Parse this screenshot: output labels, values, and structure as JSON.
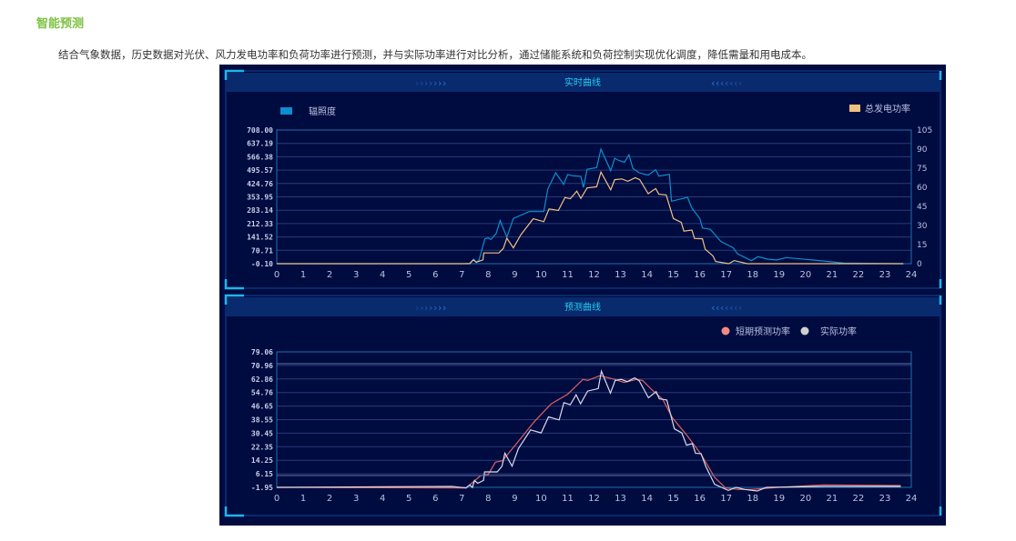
{
  "page": {
    "title": "智能预测",
    "description": "结合气象数据，历史数据对光伏、风力发电功率和负荷功率进行预测，并与实际功率进行对比分析，通过储能系统和负荷控制实现优化调度，降低需量和用电成本。"
  },
  "colors": {
    "accent_title": "#7cc242",
    "panel_bg": "#000b40",
    "header_bg": "#0a2a6e",
    "header_text": "#22d0f0"
  },
  "chart_data": [
    {
      "type": "line",
      "title": "实时曲线",
      "x_ticks": [
        "0",
        "1",
        "2",
        "3",
        "4",
        "5",
        "6",
        "7",
        "8",
        "9",
        "10",
        "11",
        "12",
        "13",
        "14",
        "15",
        "16",
        "17",
        "18",
        "19",
        "20",
        "21",
        "22",
        "23",
        "24"
      ],
      "xlim": [
        0,
        24
      ],
      "y_left_ticks": [
        "-0.10",
        "70.71",
        "141.52",
        "212.33",
        "283.14",
        "353.95",
        "424.76",
        "495.57",
        "566.38",
        "637.19",
        "708.00"
      ],
      "ylim_left": [
        -0.1,
        708.0
      ],
      "y_right_ticks": [
        "0",
        "15",
        "30",
        "45",
        "60",
        "75",
        "90",
        "105"
      ],
      "ylim_right": [
        0,
        105
      ],
      "grid": true,
      "legend": "top",
      "series": [
        {
          "name": "辐照度",
          "axis": "left",
          "color": "#0a8fd0",
          "points": [
            [
              0,
              0
            ],
            [
              7,
              0
            ],
            [
              7.3,
              2
            ],
            [
              7.45,
              24
            ],
            [
              7.55,
              5
            ],
            [
              7.65,
              20
            ],
            [
              7.87,
              132
            ],
            [
              8.0,
              136
            ],
            [
              8.1,
              128
            ],
            [
              8.3,
              160
            ],
            [
              8.45,
              228
            ],
            [
              8.7,
              140
            ],
            [
              8.95,
              240
            ],
            [
              9.55,
              276
            ],
            [
              10.1,
              276
            ],
            [
              10.25,
              395
            ],
            [
              10.55,
              481
            ],
            [
              10.85,
              420
            ],
            [
              11.0,
              472
            ],
            [
              11.2,
              465
            ],
            [
              11.5,
              463
            ],
            [
              11.6,
              404
            ],
            [
              11.74,
              500
            ],
            [
              12.1,
              509
            ],
            [
              12.26,
              607
            ],
            [
              12.63,
              492
            ],
            [
              12.78,
              558
            ],
            [
              12.95,
              546
            ],
            [
              13.15,
              537
            ],
            [
              13.32,
              577
            ],
            [
              13.47,
              504
            ],
            [
              13.7,
              482
            ],
            [
              14.05,
              469
            ],
            [
              14.33,
              498
            ],
            [
              14.45,
              464
            ],
            [
              14.85,
              473
            ],
            [
              14.93,
              331
            ],
            [
              15.54,
              351
            ],
            [
              15.7,
              294
            ],
            [
              16.0,
              239
            ],
            [
              16.1,
              189
            ],
            [
              16.4,
              182
            ],
            [
              16.8,
              117
            ],
            [
              17.26,
              84
            ],
            [
              17.43,
              52
            ],
            [
              17.95,
              16
            ],
            [
              18.2,
              37
            ],
            [
              18.57,
              24
            ],
            [
              18.9,
              19
            ],
            [
              19.27,
              32
            ],
            [
              20.3,
              19
            ],
            [
              21.45,
              3
            ],
            [
              23.7,
              0
            ]
          ]
        },
        {
          "name": "总发电功率",
          "axis": "right",
          "color": "#f0c080",
          "points": [
            [
              0,
              0
            ],
            [
              7.3,
              0
            ],
            [
              7.43,
              2.9
            ],
            [
              7.55,
              1.2
            ],
            [
              7.8,
              3
            ],
            [
              7.83,
              8.4
            ],
            [
              8.4,
              8.4
            ],
            [
              8.57,
              12
            ],
            [
              8.7,
              20
            ],
            [
              8.95,
              12.4
            ],
            [
              9.23,
              22.7
            ],
            [
              9.7,
              35.3
            ],
            [
              10.1,
              33
            ],
            [
              10.3,
              43
            ],
            [
              10.65,
              41.8
            ],
            [
              10.9,
              52
            ],
            [
              11.1,
              51
            ],
            [
              11.35,
              57
            ],
            [
              11.5,
              51.3
            ],
            [
              11.74,
              59.5
            ],
            [
              12.1,
              60.4
            ],
            [
              12.26,
              72
            ],
            [
              12.63,
              58
            ],
            [
              12.78,
              66
            ],
            [
              13.05,
              66.6
            ],
            [
              13.28,
              64.7
            ],
            [
              13.56,
              67.6
            ],
            [
              13.73,
              66
            ],
            [
              14.05,
              55
            ],
            [
              14.33,
              59
            ],
            [
              14.45,
              54.6
            ],
            [
              14.73,
              54
            ],
            [
              15.0,
              35.5
            ],
            [
              15.3,
              32.4
            ],
            [
              15.4,
              25.6
            ],
            [
              15.7,
              26.4
            ],
            [
              15.8,
              19.8
            ],
            [
              16.1,
              19.6
            ],
            [
              16.2,
              11.5
            ],
            [
              16.5,
              6
            ],
            [
              16.6,
              1.7
            ],
            [
              17.1,
              0
            ],
            [
              17.3,
              2.4
            ],
            [
              17.8,
              0
            ],
            [
              23.7,
              0
            ]
          ]
        }
      ]
    },
    {
      "type": "line",
      "title": "预测曲线",
      "x_ticks": [
        "0",
        "1",
        "2",
        "3",
        "4",
        "5",
        "6",
        "7",
        "8",
        "9",
        "10",
        "11",
        "12",
        "13",
        "14",
        "15",
        "16",
        "17",
        "18",
        "19",
        "20",
        "21",
        "22",
        "23",
        "24"
      ],
      "xlim": [
        0,
        24
      ],
      "y_ticks": [
        "-1.95",
        "6.15",
        "14.25",
        "22.35",
        "30.45",
        "38.55",
        "46.65",
        "54.76",
        "62.86",
        "70.96",
        "79.06"
      ],
      "ylim": [
        -1.95,
        79.06
      ],
      "grid": true,
      "legend": "top-right",
      "series": [
        {
          "name": "短期预测功率",
          "color": "#e06060",
          "legend_color": "#f08a80",
          "points": [
            [
              0,
              -1.95
            ],
            [
              7.16,
              -2.3
            ],
            [
              7.7,
              4.9
            ],
            [
              8.0,
              5.8
            ],
            [
              8.27,
              13.1
            ],
            [
              8.54,
              14
            ],
            [
              9.75,
              37.5
            ],
            [
              10.38,
              48
            ],
            [
              11.0,
              53.7
            ],
            [
              11.58,
              62.6
            ],
            [
              11.76,
              62
            ],
            [
              12.22,
              64.8
            ],
            [
              12.68,
              63.1
            ],
            [
              13.14,
              60.8
            ],
            [
              13.6,
              62.6
            ],
            [
              13.84,
              62
            ],
            [
              14.2,
              56.2
            ],
            [
              14.6,
              50.7
            ],
            [
              14.96,
              39.7
            ],
            [
              15.53,
              28.8
            ],
            [
              16.05,
              17.8
            ],
            [
              16.56,
              4.1
            ],
            [
              16.97,
              -2.3
            ],
            [
              17.48,
              -3.2
            ],
            [
              17.93,
              -3.2
            ],
            [
              18.97,
              -1.95
            ],
            [
              20.69,
              -0.5
            ],
            [
              23.6,
              -0.85
            ]
          ]
        },
        {
          "name": "实际功率",
          "color": "#d8dce8",
          "legend_color": "#d0d0d0",
          "points": [
            [
              0,
              -1.95
            ],
            [
              6.62,
              -1.4
            ],
            [
              7.16,
              -2.3
            ],
            [
              7.3,
              -0.5
            ],
            [
              7.4,
              -2.0
            ],
            [
              7.48,
              2.2
            ],
            [
              7.6,
              0.5
            ],
            [
              7.82,
              2.2
            ],
            [
              7.86,
              7.3
            ],
            [
              8.34,
              7.3
            ],
            [
              8.52,
              10.7
            ],
            [
              8.63,
              18.5
            ],
            [
              8.9,
              10.7
            ],
            [
              9.14,
              21.2
            ],
            [
              9.6,
              32.4
            ],
            [
              10.0,
              30.6
            ],
            [
              10.28,
              40.2
            ],
            [
              10.68,
              38.4
            ],
            [
              10.86,
              48.7
            ],
            [
              11.1,
              47.4
            ],
            [
              11.32,
              53.4
            ],
            [
              11.49,
              48
            ],
            [
              11.76,
              55.6
            ],
            [
              12.16,
              57.1
            ],
            [
              12.28,
              67.5
            ],
            [
              12.62,
              54.4
            ],
            [
              12.8,
              62
            ],
            [
              13.03,
              62.6
            ],
            [
              13.26,
              61.3
            ],
            [
              13.54,
              63.5
            ],
            [
              13.71,
              61.7
            ],
            [
              14.06,
              51.6
            ],
            [
              14.35,
              55.3
            ],
            [
              14.47,
              51
            ],
            [
              14.75,
              50.3
            ],
            [
              15.04,
              33
            ],
            [
              15.32,
              30.6
            ],
            [
              15.5,
              23.3
            ],
            [
              15.72,
              24.2
            ],
            [
              15.84,
              18.4
            ],
            [
              16.05,
              18.2
            ],
            [
              16.23,
              10.5
            ],
            [
              16.56,
              -0.1
            ],
            [
              17.08,
              -3.8
            ],
            [
              17.37,
              -1.95
            ],
            [
              17.71,
              -3.2
            ],
            [
              18.17,
              -4.1
            ],
            [
              18.52,
              -1.95
            ],
            [
              20.7,
              -1.4
            ],
            [
              23.6,
              -1.4
            ]
          ]
        }
      ]
    }
  ]
}
